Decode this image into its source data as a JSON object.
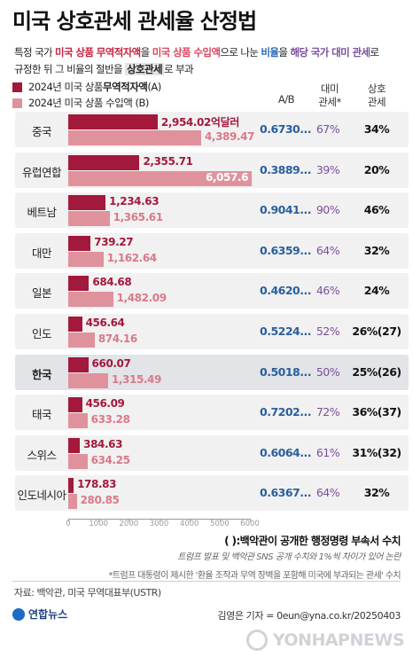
{
  "title": "미국 상호관세 관세율 산정법",
  "description": {
    "line1_parts": [
      "특정 국가 ",
      "미국 상품 무역적자액",
      "을 ",
      "미국 상품 수입액",
      "으로 나눈 ",
      "비율",
      "을 ",
      "해당 국가 대미 관세",
      "로"
    ],
    "line2_parts": [
      "규정한 뒤 그 비율의 절반을 ",
      "상호관세",
      "로 부과"
    ]
  },
  "legend": {
    "export_label_prefix": "2024년 미국 상품 ",
    "export_label_bold": "무역적자액",
    "export_label_suffix": " (A)",
    "import_label": "2024년 미국 상품 수입액 (B)"
  },
  "columns": {
    "ab": "A/B",
    "rate_line1": "대미",
    "rate_line2": "관세*",
    "tariff_line1": "상호",
    "tariff_line2": "관세"
  },
  "chart_data": {
    "type": "bar",
    "orientation": "horizontal",
    "categories": [
      "중국",
      "유럽연합",
      "베트남",
      "대만",
      "일본",
      "인도",
      "한국",
      "태국",
      "스위스",
      "인도네시아"
    ],
    "series": [
      {
        "name": "2024년 미국 상품 무역적자액 (A)",
        "values": [
          2954.02,
          2355.71,
          1234.63,
          739.27,
          684.68,
          456.64,
          660.07,
          456.09,
          384.63,
          178.83
        ]
      },
      {
        "name": "2024년 미국 상품 수입액 (B)",
        "values": [
          4389.47,
          6057.6,
          1365.61,
          1162.64,
          1482.09,
          874.16,
          1315.49,
          633.28,
          634.25,
          280.85
        ]
      }
    ],
    "xlim": [
      0,
      6000
    ],
    "xticks": [
      "0",
      "1000",
      "2000",
      "3000",
      "4000",
      "5000",
      "6000"
    ],
    "grid": false
  },
  "rows": [
    {
      "country": "중국",
      "exp_label": "2,954.02억달러",
      "imp_label": "4,389.47",
      "ab": "0.6730...",
      "rate": "67%",
      "tariff": "34%"
    },
    {
      "country": "유럽연합",
      "exp_label": "2,355.71",
      "imp_label": "6,057.6",
      "ab": "0.3889...",
      "rate": "39%",
      "tariff": "20%"
    },
    {
      "country": "베트남",
      "exp_label": "1,234.63",
      "imp_label": "1,365.61",
      "ab": "0.9041...",
      "rate": "90%",
      "tariff": "46%"
    },
    {
      "country": "대만",
      "exp_label": "739.27",
      "imp_label": "1,162.64",
      "ab": "0.6359...",
      "rate": "64%",
      "tariff": "32%"
    },
    {
      "country": "일본",
      "exp_label": "684.68",
      "imp_label": "1,482.09",
      "ab": "0.4620...",
      "rate": "46%",
      "tariff": "24%"
    },
    {
      "country": "인도",
      "exp_label": "456.64",
      "imp_label": "874.16",
      "ab": "0.5224...",
      "rate": "52%",
      "tariff": "26%(27)"
    },
    {
      "country": "한국",
      "exp_label": "660.07",
      "imp_label": "1,315.49",
      "ab": "0.5018...",
      "rate": "50%",
      "tariff": "25%(26)",
      "highlight": true
    },
    {
      "country": "태국",
      "exp_label": "456.09",
      "imp_label": "633.28",
      "ab": "0.7202...",
      "rate": "72%",
      "tariff": "36%(37)"
    },
    {
      "country": "스위스",
      "exp_label": "384.63",
      "imp_label": "634.25",
      "ab": "0.6064...",
      "rate": "61%",
      "tariff": "31%(32)"
    },
    {
      "country": "인도네시아",
      "exp_label": "178.83",
      "imp_label": "280.85",
      "ab": "0.6367...",
      "rate": "64%",
      "tariff": "32%"
    }
  ],
  "notes": {
    "note1": "( ):백악관이 공개한 행정명령 부속서 수치",
    "note2": "트럼프 발표 및 백악관 SNS 공개 수치와 1%씩 차이가 있어 논란",
    "note3": "*트럼프 대통령이 제시한 '환율 조작과 무역 장벽을 포함해 미국에 부과되는 관세' 수치",
    "source": "자료: 백악관, 미국 무역대표부(USTR)",
    "logo": "연합뉴스",
    "credit": "김영은 기자 = 0eun@yna.co.kr/20250403",
    "watermark": "YONHAPNEWS"
  },
  "colors": {
    "export": "#a3193c",
    "import": "#e0929c",
    "ab": "#2a5f9e",
    "rate": "#7a4f9d"
  }
}
